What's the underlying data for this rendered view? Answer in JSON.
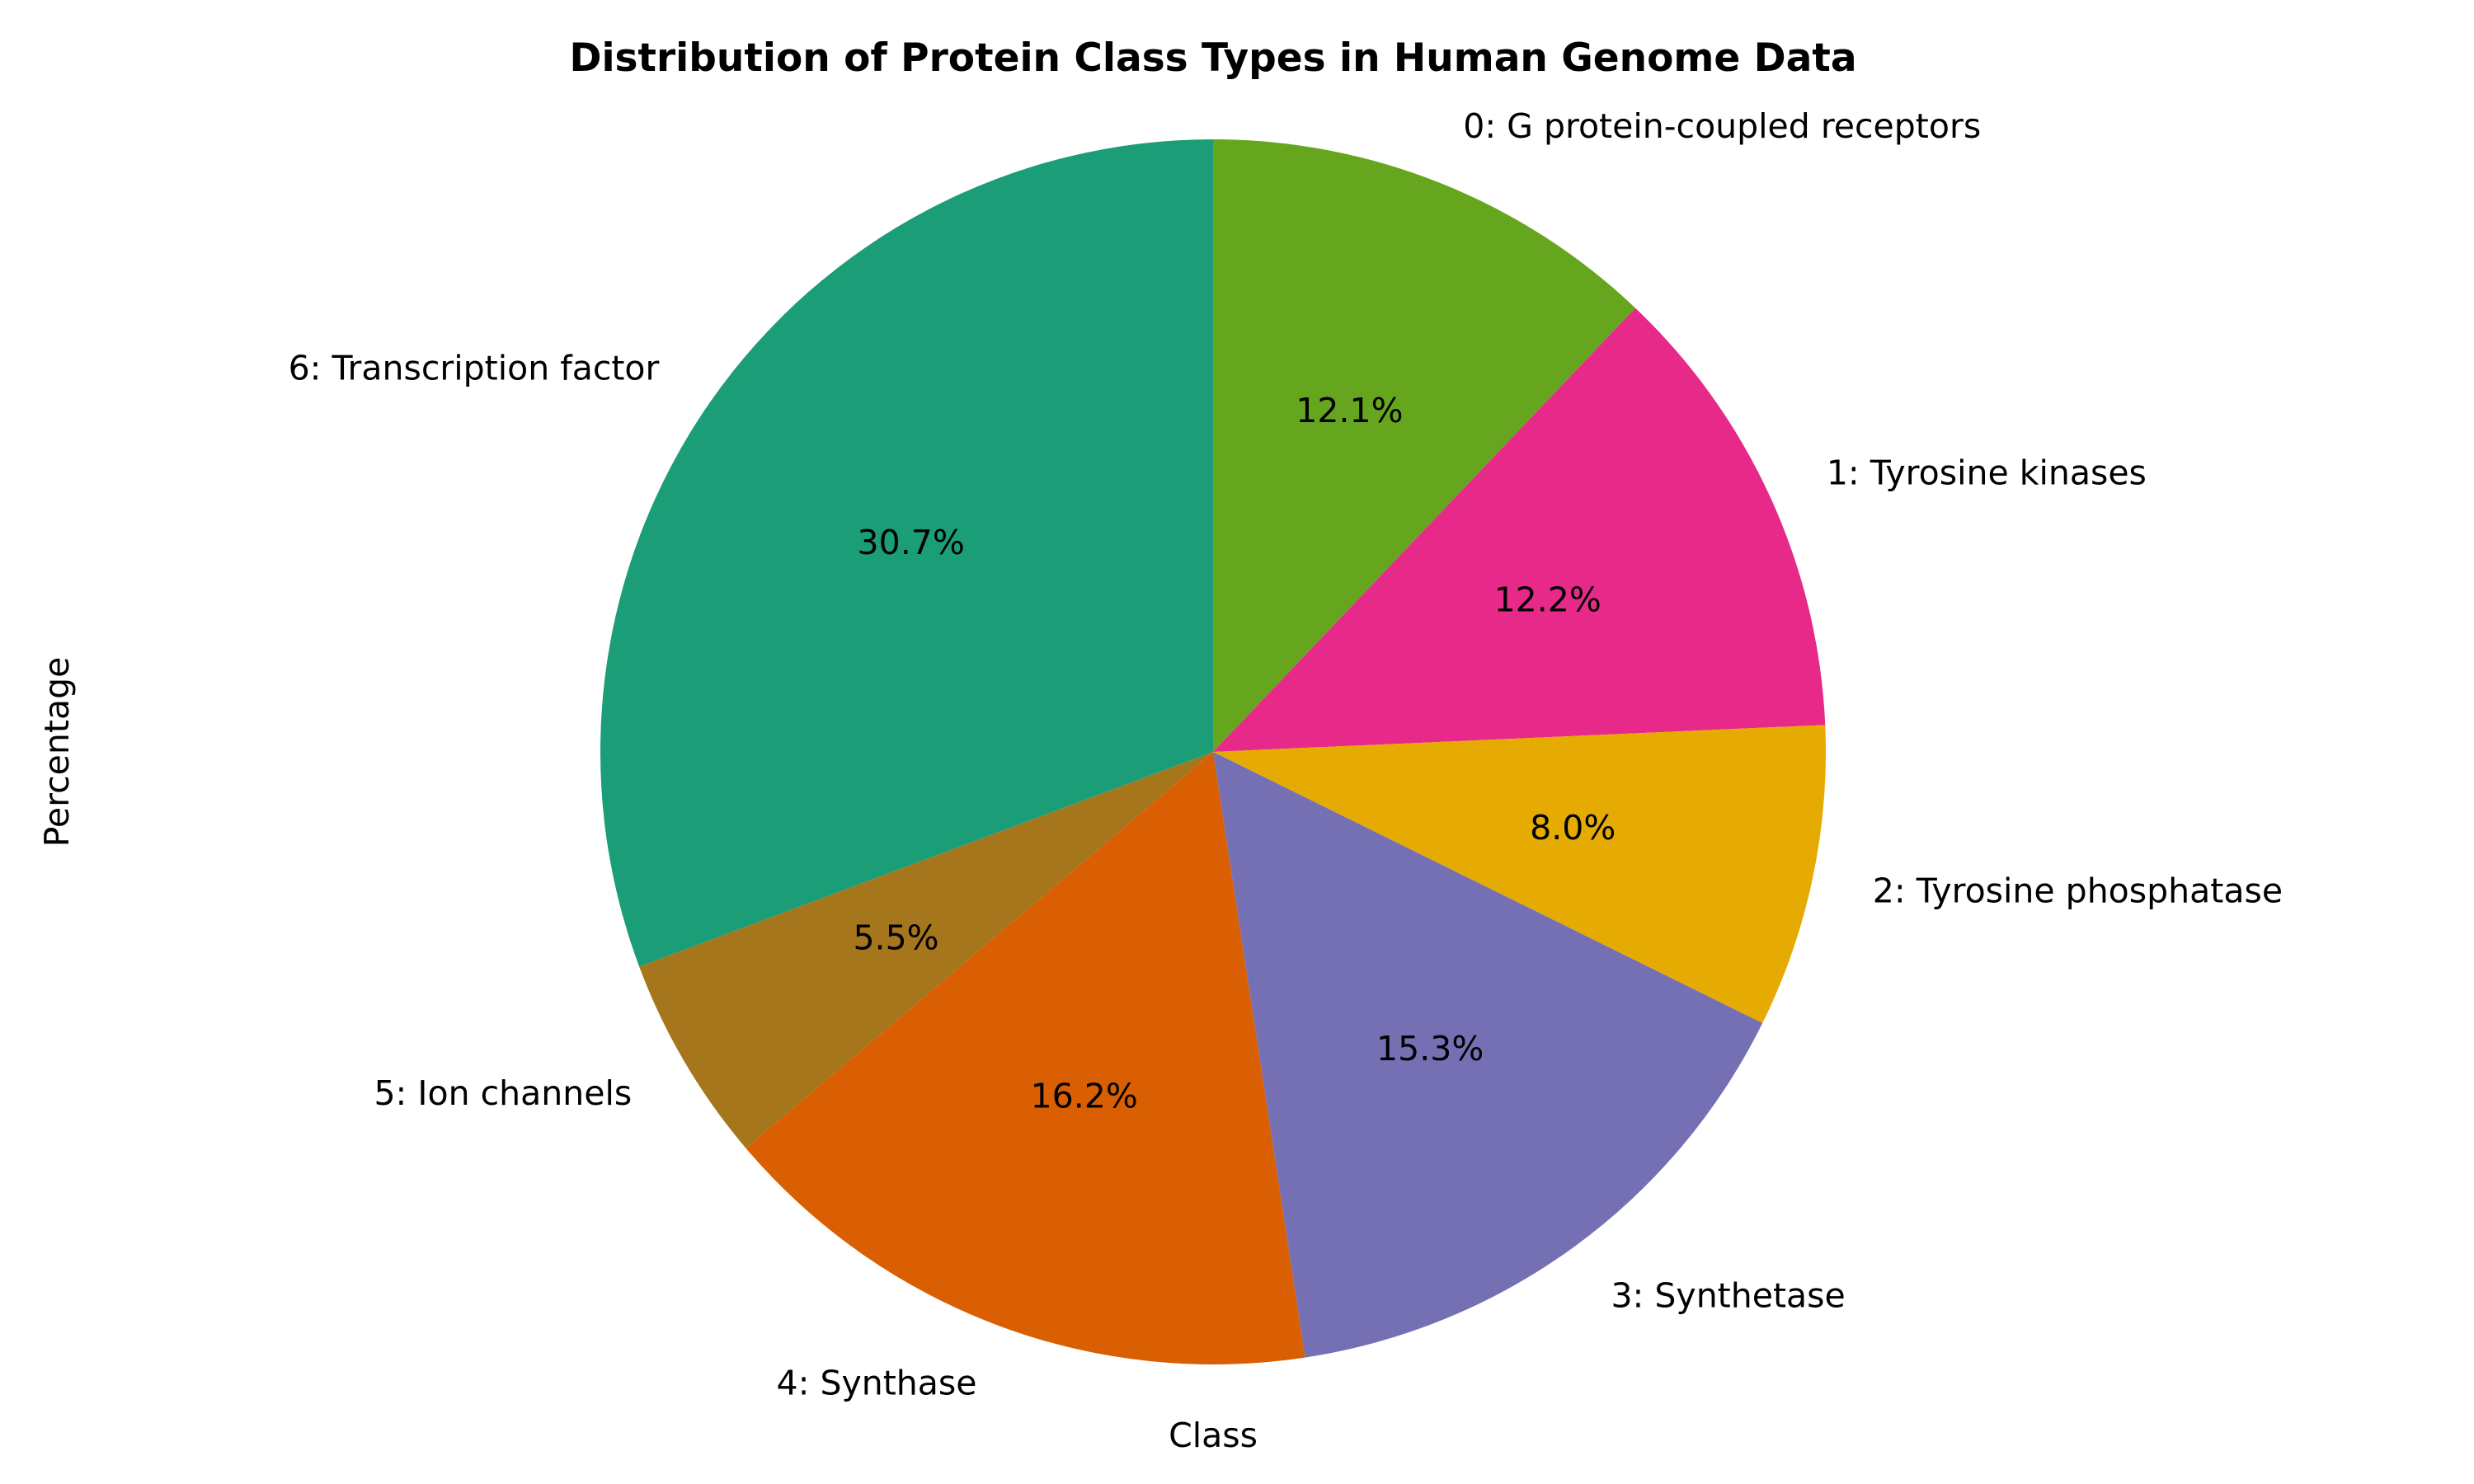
{
  "chart_data": {
    "type": "pie",
    "title": "Distribution of Protein Class Types in Human Genome Data",
    "xlabel": "Class",
    "ylabel": "Percentage",
    "categories": [
      "0: G protein-coupled receptors",
      "1: Tyrosine kinases",
      "2: Tyrosine phosphatase",
      "3: Synthetase",
      "4: Synthase",
      "5: Ion channels",
      "6: Transcription factor"
    ],
    "values": [
      12.1,
      12.2,
      8.0,
      15.3,
      16.2,
      5.5,
      30.7
    ],
    "pct_labels": [
      "12.1%",
      "12.2%",
      "8.0%",
      "15.3%",
      "16.2%",
      "5.5%",
      "30.7%"
    ],
    "colors": [
      "#66a61e",
      "#e7298a",
      "#e6ab02",
      "#7570b3",
      "#d95f02",
      "#a6761d",
      "#1b9e77"
    ],
    "legend": false
  }
}
